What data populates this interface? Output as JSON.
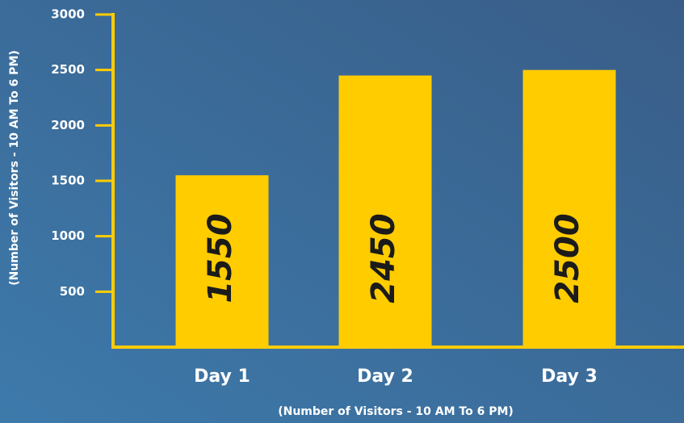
{
  "chart_data": {
    "type": "bar",
    "ylabel": "(Number of Visitors - 10 AM To 6 PM)",
    "xlabel": "(Number of Visitors - 10 AM To 6 PM)",
    "categories": [
      "Day 1",
      "Day 2",
      "Day 3"
    ],
    "values": [
      1550,
      2450,
      2500
    ],
    "color": "#ffcc00",
    "ylim": [
      0,
      3000
    ],
    "yticks": [
      500,
      1000,
      1500,
      2000,
      2500,
      3000
    ],
    "grid": false
  }
}
